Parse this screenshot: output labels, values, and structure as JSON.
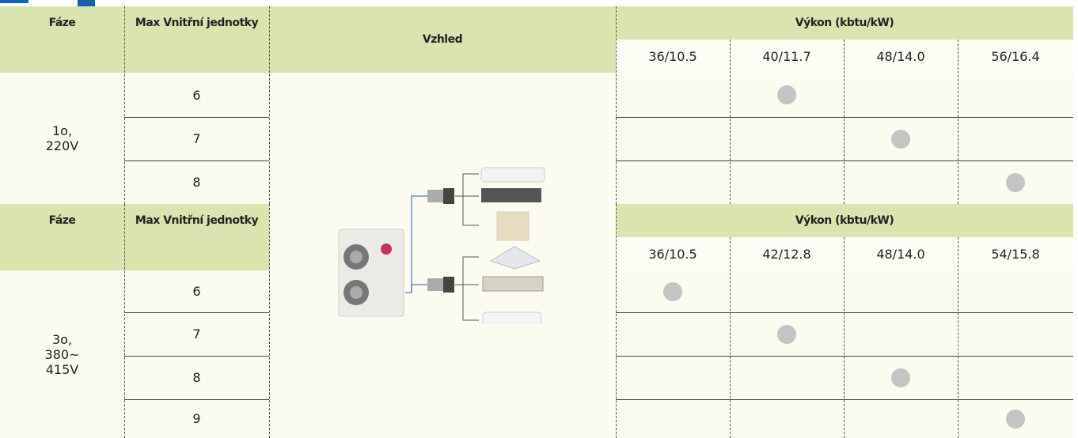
{
  "appearance": "Vzhled",
  "sections": [
    {
      "header": {
        "phase": "Fáze",
        "max_units": "Max Vnitřní jednotky",
        "capacity": "Výkon (kbtu/kW)",
        "capacities": [
          "36/10.5",
          "40/11.7",
          "48/14.0",
          "56/16.4"
        ]
      },
      "phase_lines": [
        "1o,",
        "220V"
      ],
      "rows": [
        {
          "max_units": 6,
          "marked": [
            false,
            true,
            false,
            false
          ]
        },
        {
          "max_units": 7,
          "marked": [
            false,
            false,
            true,
            false
          ]
        },
        {
          "max_units": 8,
          "marked": [
            false,
            false,
            false,
            true
          ]
        }
      ]
    },
    {
      "header": {
        "phase": "Fáze",
        "max_units": "Max Vnitřní jednotky",
        "capacity": "Výkon (kbtu/kW)",
        "capacities": [
          "36/10.5",
          "42/12.8",
          "48/14.0",
          "54/15.8"
        ]
      },
      "phase_lines": [
        "3o,",
        "380~",
        "415V"
      ],
      "rows": [
        {
          "max_units": 6,
          "marked": [
            true,
            false,
            false,
            false
          ]
        },
        {
          "max_units": 7,
          "marked": [
            false,
            true,
            false,
            false
          ]
        },
        {
          "max_units": 8,
          "marked": [
            false,
            false,
            true,
            false
          ]
        },
        {
          "max_units": 9,
          "marked": [
            false,
            false,
            false,
            true
          ]
        }
      ]
    }
  ]
}
